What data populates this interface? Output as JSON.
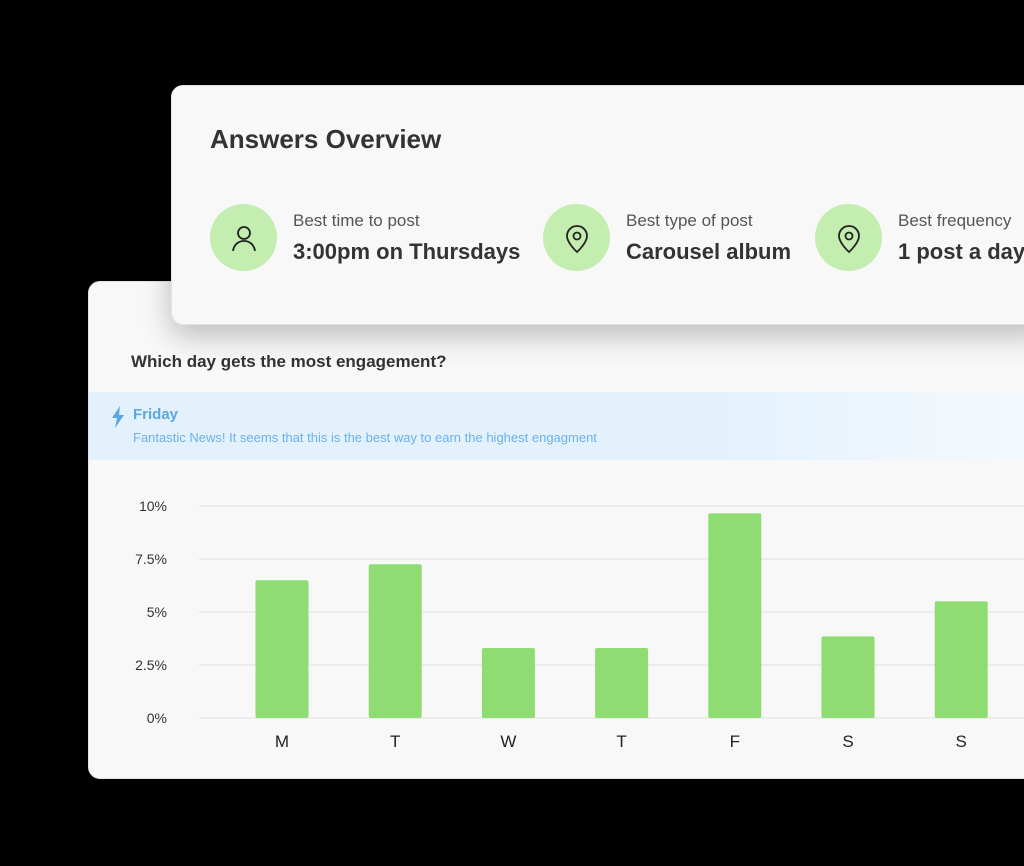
{
  "overview": {
    "title": "Answers Overview",
    "stats": [
      {
        "icon": "user-icon",
        "label": "Best time to post",
        "value": "3:00pm on Thursdays"
      },
      {
        "icon": "location-pin-icon",
        "label": "Best type of post",
        "value": "Carousel album"
      },
      {
        "icon": "location-pin-icon",
        "label": "Best frequency",
        "value": "1 post a day"
      }
    ]
  },
  "engagement": {
    "question": "Which day gets the most engagement?",
    "banner": {
      "icon": "lightning-icon",
      "title": "Friday",
      "message": "Fantastic News! It seems that this is the best way to earn the highest engagment"
    }
  },
  "colors": {
    "bar": "#8edc72",
    "icon_bg": "#c3eeb0",
    "banner_text": "#5aa7e6"
  },
  "chart_data": {
    "type": "bar",
    "categories": [
      "M",
      "T",
      "W",
      "T",
      "F",
      "S",
      "S"
    ],
    "values": [
      6.5,
      7.25,
      3.3,
      3.3,
      9.65,
      3.85,
      5.5
    ],
    "yticks": [
      "0%",
      "2.5%",
      "5%",
      "7.5%",
      "10%"
    ],
    "ylim": [
      0,
      10
    ],
    "grid": true,
    "xlabel": "",
    "ylabel": ""
  }
}
